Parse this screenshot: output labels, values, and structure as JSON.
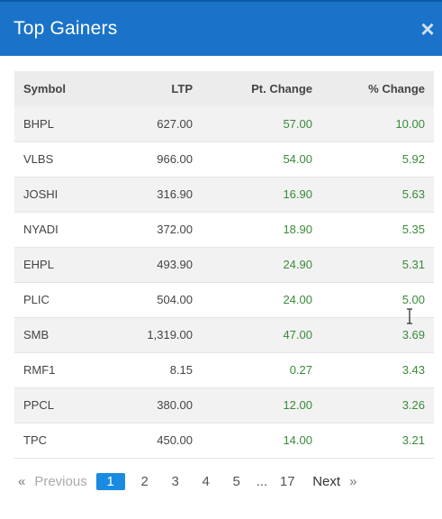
{
  "header": {
    "title": "Top Gainers",
    "close_glyph": "×"
  },
  "table": {
    "columns": [
      "Symbol",
      "LTP",
      "Pt. Change",
      "% Change"
    ],
    "rows": [
      {
        "symbol": "BHPL",
        "ltp": "627.00",
        "pt_change": "57.00",
        "pct_change": "10.00"
      },
      {
        "symbol": "VLBS",
        "ltp": "966.00",
        "pt_change": "54.00",
        "pct_change": "5.92"
      },
      {
        "symbol": "JOSHI",
        "ltp": "316.90",
        "pt_change": "16.90",
        "pct_change": "5.63"
      },
      {
        "symbol": "NYADI",
        "ltp": "372.00",
        "pt_change": "18.90",
        "pct_change": "5.35"
      },
      {
        "symbol": "EHPL",
        "ltp": "493.90",
        "pt_change": "24.90",
        "pct_change": "5.31"
      },
      {
        "symbol": "PLIC",
        "ltp": "504.00",
        "pt_change": "24.00",
        "pct_change": "5.00"
      },
      {
        "symbol": "SMB",
        "ltp": "1,319.00",
        "pt_change": "47.00",
        "pct_change": "3.69"
      },
      {
        "symbol": "RMF1",
        "ltp": "8.15",
        "pt_change": "0.27",
        "pct_change": "3.43"
      },
      {
        "symbol": "PPCL",
        "ltp": "380.00",
        "pt_change": "12.00",
        "pct_change": "3.26"
      },
      {
        "symbol": "TPC",
        "ltp": "450.00",
        "pt_change": "14.00",
        "pct_change": "3.21"
      }
    ]
  },
  "pagination": {
    "prev_arrow": "«",
    "previous_label": "Previous",
    "pages": [
      "1",
      "2",
      "3",
      "4",
      "5"
    ],
    "ellipsis": "...",
    "last_page": "17",
    "next_label": "Next",
    "next_arrow": "»",
    "active_page": "1"
  },
  "colors": {
    "header_bg": "#1a73c9",
    "positive": "#3a8a3a",
    "active_page": "#1a8be0"
  }
}
